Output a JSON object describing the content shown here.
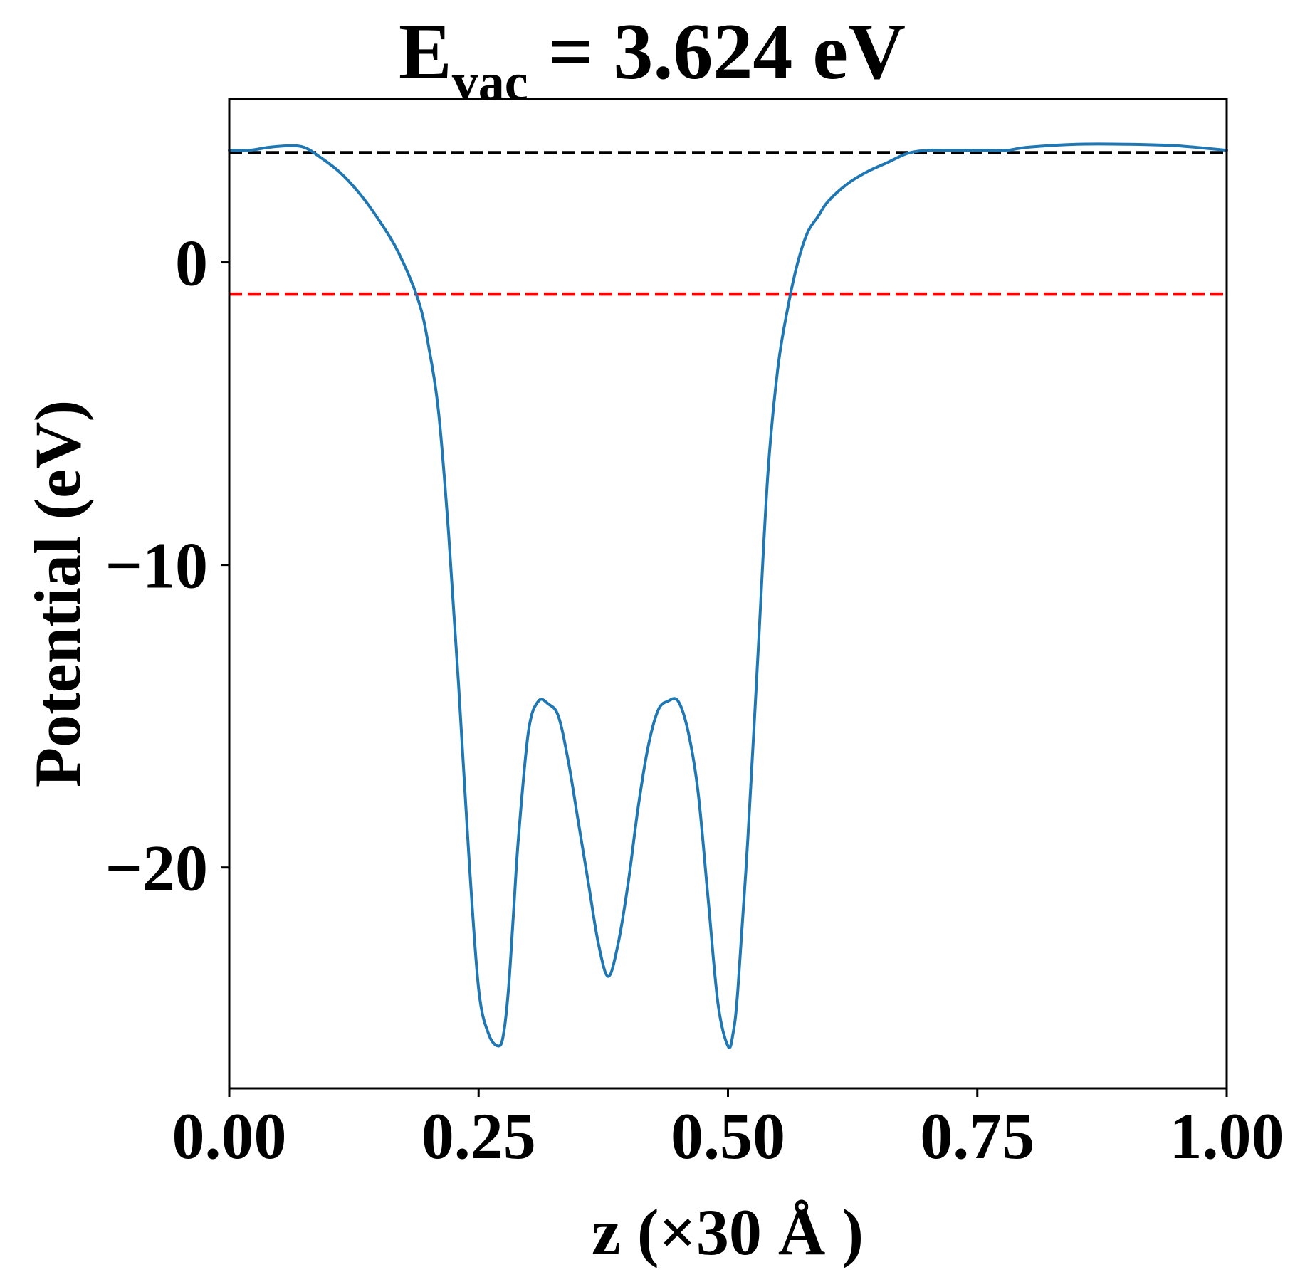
{
  "chart_data": {
    "type": "line",
    "title": {
      "prefix": "E",
      "subscript": "vac",
      "suffix": " = 3.624 eV"
    },
    "xlabel": "z (×30 Å )",
    "ylabel": "Potential (eV)",
    "xlim": [
      0.0,
      1.0
    ],
    "ylim": [
      -27.3,
      5.4
    ],
    "xticks": [
      0.0,
      0.25,
      0.5,
      0.75,
      1.0
    ],
    "xtick_labels": [
      "0.00",
      "0.25",
      "0.50",
      "0.75",
      "1.00"
    ],
    "yticks": [
      0,
      -10,
      -20
    ],
    "ytick_labels": [
      "0",
      "−10",
      "−20"
    ],
    "grid": false,
    "series": [
      {
        "color": "#1f77b4",
        "x": [
          0.0,
          0.02,
          0.04,
          0.06,
          0.075,
          0.09,
          0.11,
          0.13,
          0.15,
          0.17,
          0.19,
          0.2,
          0.21,
          0.22,
          0.23,
          0.24,
          0.25,
          0.26,
          0.27,
          0.275,
          0.28,
          0.285,
          0.29,
          0.3,
          0.31,
          0.32,
          0.33,
          0.34,
          0.35,
          0.36,
          0.37,
          0.38,
          0.39,
          0.4,
          0.41,
          0.42,
          0.43,
          0.44,
          0.45,
          0.46,
          0.47,
          0.48,
          0.49,
          0.5,
          0.505,
          0.51,
          0.52,
          0.53,
          0.54,
          0.55,
          0.56,
          0.57,
          0.58,
          0.59,
          0.6,
          0.62,
          0.64,
          0.66,
          0.68,
          0.7,
          0.72,
          0.74,
          0.76,
          0.78,
          0.8,
          0.85,
          0.9,
          0.95,
          1.0
        ],
        "y": [
          3.7,
          3.7,
          3.8,
          3.85,
          3.8,
          3.5,
          3.0,
          2.3,
          1.4,
          0.3,
          -1.3,
          -2.8,
          -5.0,
          -9.0,
          -14.0,
          -19.5,
          -24.0,
          -25.5,
          -25.9,
          -25.5,
          -24.0,
          -21.5,
          -19.0,
          -15.5,
          -14.5,
          -14.6,
          -15.0,
          -16.5,
          -18.5,
          -20.5,
          -22.5,
          -23.6,
          -22.5,
          -20.5,
          -18.0,
          -16.0,
          -14.8,
          -14.5,
          -14.5,
          -15.5,
          -17.5,
          -21.0,
          -24.5,
          -25.9,
          -25.5,
          -24.0,
          -19.0,
          -13.0,
          -7.0,
          -3.5,
          -1.5,
          0.0,
          1.0,
          1.5,
          2.0,
          2.6,
          3.0,
          3.3,
          3.6,
          3.7,
          3.7,
          3.7,
          3.7,
          3.7,
          3.8,
          3.9,
          3.9,
          3.85,
          3.7
        ]
      }
    ],
    "hlines": [
      {
        "y": 3.624,
        "color": "#000000",
        "style": "dashed"
      },
      {
        "y": -1.05,
        "color": "#ff0000",
        "style": "dashed"
      }
    ]
  }
}
